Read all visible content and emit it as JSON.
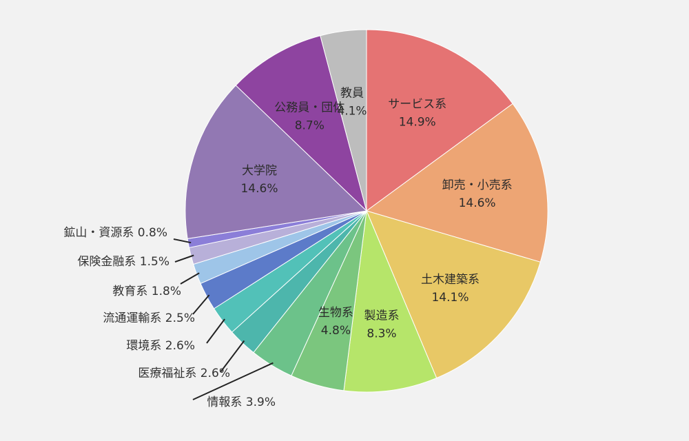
{
  "chart_data": {
    "type": "pie",
    "title": "",
    "start": "top",
    "direction": "clockwise",
    "slices": [
      {
        "label": "サービス系",
        "value": 14.9,
        "value_label": "14.9%",
        "color": "#e57373",
        "label_position": "inside"
      },
      {
        "label": "卸売・小売系",
        "value": 14.6,
        "value_label": "14.6%",
        "color": "#eda574",
        "label_position": "inside"
      },
      {
        "label": "土木建築系",
        "value": 14.1,
        "value_label": "14.1%",
        "color": "#e8c866",
        "label_position": "inside"
      },
      {
        "label": "製造系",
        "value": 8.3,
        "value_label": "8.3%",
        "color": "#b6e56a",
        "label_position": "inside"
      },
      {
        "label": "生物系",
        "value": 4.8,
        "value_label": "4.8%",
        "color": "#7bc67e",
        "label_position": "inside"
      },
      {
        "label": "情報系",
        "value": 3.9,
        "value_label": "3.9%",
        "color": "#6cc28a",
        "label_position": "outside"
      },
      {
        "label": "医療福祉系",
        "value": 2.6,
        "value_label": "2.6%",
        "color": "#4db6ac",
        "label_position": "outside"
      },
      {
        "label": "環境系",
        "value": 2.6,
        "value_label": "2.6%",
        "color": "#52c1b8",
        "label_position": "outside"
      },
      {
        "label": "流通運輸系",
        "value": 2.5,
        "value_label": "2.5%",
        "color": "#5c7bc9",
        "label_position": "outside"
      },
      {
        "label": "教育系",
        "value": 1.8,
        "value_label": "1.8%",
        "color": "#9ec5e8",
        "label_position": "outside"
      },
      {
        "label": "保険金融系",
        "value": 1.5,
        "value_label": "1.5%",
        "color": "#b8b0d9",
        "label_position": "outside"
      },
      {
        "label": "鉱山・資源系",
        "value": 0.8,
        "value_label": "0.8%",
        "color": "#8b7ed8",
        "label_position": "outside"
      },
      {
        "label": "大学院",
        "value": 14.6,
        "value_label": "14.6%",
        "color": "#9278b3",
        "label_position": "inside"
      },
      {
        "label": "公務員・団体",
        "value": 8.7,
        "value_label": "8.7%",
        "color": "#8e44a0",
        "label_position": "inside"
      },
      {
        "label": "教員",
        "value": 4.1,
        "value_label": "4.1%",
        "color": "#bdbdbd",
        "label_position": "inside"
      }
    ]
  }
}
